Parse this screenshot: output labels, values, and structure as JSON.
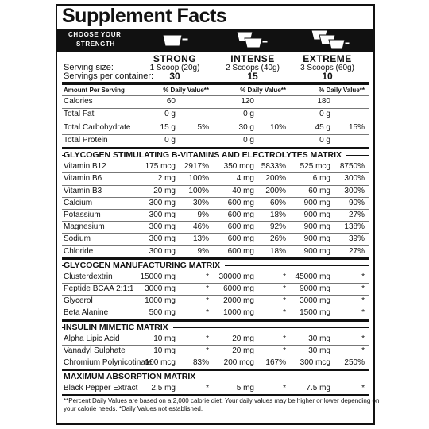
{
  "header": {
    "title": "Supplement Facts",
    "choose": [
      "CHOOSE YOUR",
      "STRENGTH"
    ]
  },
  "serving_labels": [
    "Serving size:",
    "Servings per container:"
  ],
  "strengths": [
    {
      "name": "STRONG",
      "serving": "1 Scoop (20g)",
      "servings": "30"
    },
    {
      "name": "INTENSE",
      "serving": "2 Scoops (40g)",
      "servings": "15"
    },
    {
      "name": "EXTREME",
      "serving": "3 Scoops (60g)",
      "servings": "10"
    }
  ],
  "amount_header": {
    "label": "Amount Per Serving",
    "dv": [
      "% Daily Value**",
      "% Daily Value**",
      "% Daily Value**"
    ]
  },
  "basic_rows": [
    {
      "name": "Calories",
      "cells": [
        [
          "60"
        ],
        [
          "120"
        ],
        [
          "180"
        ]
      ]
    },
    {
      "name": "Total Fat",
      "cells": [
        [
          "0 g"
        ],
        [
          "0 g"
        ],
        [
          "0 g"
        ]
      ]
    },
    {
      "name": "Total Carbohydrate",
      "cells": [
        [
          "15 g",
          "5%"
        ],
        [
          "30 g",
          "10%"
        ],
        [
          "45 g",
          "15%"
        ]
      ]
    },
    {
      "name": "Total Protein",
      "cells": [
        [
          "0 g"
        ],
        [
          "0 g"
        ],
        [
          "0 g"
        ]
      ]
    }
  ],
  "sections": [
    {
      "title": "GLYCOGEN STIMULATING B-VITAMINS AND ELECTROLYTES MATRIX",
      "rows": [
        {
          "name": "Vitamin B12",
          "cells": [
            [
              "175 mcg",
              "2917%"
            ],
            [
              "350 mcg",
              "5833%"
            ],
            [
              "525 mcg",
              "8750%"
            ]
          ]
        },
        {
          "name": "Vitamin B6",
          "cells": [
            [
              "2 mg",
              "100%"
            ],
            [
              "4 mg",
              "200%"
            ],
            [
              "6 mg",
              "300%"
            ]
          ]
        },
        {
          "name": "Vitamin B3",
          "cells": [
            [
              "20 mg",
              "100%"
            ],
            [
              "40 mg",
              "200%"
            ],
            [
              "60 mg",
              "300%"
            ]
          ]
        },
        {
          "name": "Calcium",
          "cells": [
            [
              "300 mg",
              "30%"
            ],
            [
              "600 mg",
              "60%"
            ],
            [
              "900 mg",
              "90%"
            ]
          ]
        },
        {
          "name": "Potassium",
          "cells": [
            [
              "300 mg",
              "9%"
            ],
            [
              "600 mg",
              "18%"
            ],
            [
              "900 mg",
              "27%"
            ]
          ]
        },
        {
          "name": "Magnesium",
          "cells": [
            [
              "300 mg",
              "46%"
            ],
            [
              "600 mg",
              "92%"
            ],
            [
              "900 mg",
              "138%"
            ]
          ]
        },
        {
          "name": "Sodium",
          "cells": [
            [
              "300 mg",
              "13%"
            ],
            [
              "600 mg",
              "26%"
            ],
            [
              "900 mg",
              "39%"
            ]
          ]
        },
        {
          "name": "Chloride",
          "cells": [
            [
              "300 mg",
              "9%"
            ],
            [
              "600 mg",
              "18%"
            ],
            [
              "900 mg",
              "27%"
            ]
          ]
        }
      ]
    },
    {
      "title": "GLYCOGEN MANUFACTURING MATRIX",
      "rows": [
        {
          "name": "Clusterdextrin",
          "cells": [
            [
              "15000 mg",
              "*"
            ],
            [
              "30000 mg",
              "*"
            ],
            [
              "45000 mg",
              "*"
            ]
          ]
        },
        {
          "name": "Peptide BCAA 2:1:1",
          "cells": [
            [
              "3000 mg",
              "*"
            ],
            [
              "6000 mg",
              "*"
            ],
            [
              "9000 mg",
              "*"
            ]
          ]
        },
        {
          "name": "Glycerol",
          "cells": [
            [
              "1000 mg",
              "*"
            ],
            [
              "2000 mg",
              "*"
            ],
            [
              "3000 mg",
              "*"
            ]
          ]
        },
        {
          "name": "Beta Alanine",
          "cells": [
            [
              "500 mg",
              "*"
            ],
            [
              "1000 mg",
              "*"
            ],
            [
              "1500 mg",
              "*"
            ]
          ]
        }
      ]
    },
    {
      "title": "INSULIN MIMETIC MATRIX",
      "rows": [
        {
          "name": "Alpha Lipic Acid",
          "cells": [
            [
              "10 mg",
              "*"
            ],
            [
              "20 mg",
              "*"
            ],
            [
              "30 mg",
              "*"
            ]
          ]
        },
        {
          "name": "Vanadyl Sulphate",
          "cells": [
            [
              "10 mg",
              "*"
            ],
            [
              "20 mg",
              "*"
            ],
            [
              "30 mg",
              "*"
            ]
          ]
        },
        {
          "name": "Chromium Polynicotinate",
          "cells": [
            [
              "100 mcg",
              "83%"
            ],
            [
              "200 mcg",
              "167%"
            ],
            [
              "300 mcg",
              "250%"
            ]
          ]
        }
      ]
    },
    {
      "title": "MAXIMUM ABSORPTION MATRIX",
      "rows": [
        {
          "name": "Black Pepper Extract",
          "cells": [
            [
              "2.5 mg",
              "*"
            ],
            [
              "5 mg",
              "*"
            ],
            [
              "7.5 mg",
              "*"
            ]
          ]
        }
      ]
    }
  ],
  "footnote": [
    "**Percent Daily Values are based on a 2,000 calorie diet. Your daily values may be higher or lower depending on",
    "your calorie needs. *Daily Values not established."
  ]
}
